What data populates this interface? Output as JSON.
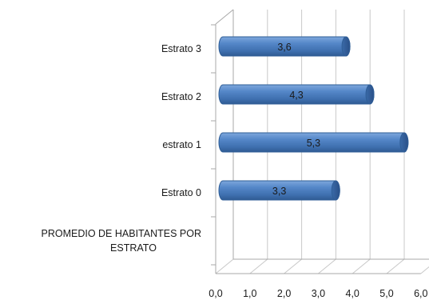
{
  "chart_data": {
    "type": "bar",
    "orientation": "horizontal",
    "style": "3d-cylinder",
    "categories": [
      "PROMEDIO DE HABITANTES POR ESTRATO",
      "Estrato 0",
      "estrato 1",
      "Estrato 2",
      "Estrato 3"
    ],
    "values": [
      null,
      3.3,
      5.3,
      4.3,
      3.6
    ],
    "value_labels": [
      "",
      "3,3",
      "5,3",
      "4,3",
      "3,6"
    ],
    "x_ticks": [
      "0,0",
      "1,0",
      "2,0",
      "3,0",
      "4,0",
      "5,0",
      "6,0"
    ],
    "xlim": [
      0,
      6
    ],
    "grid": true,
    "bar_color": "#4a7dc0",
    "bar_edge_color": "#2f5e97",
    "grid_color": "#c8c8c8",
    "title": "",
    "xlabel": "",
    "ylabel": ""
  }
}
